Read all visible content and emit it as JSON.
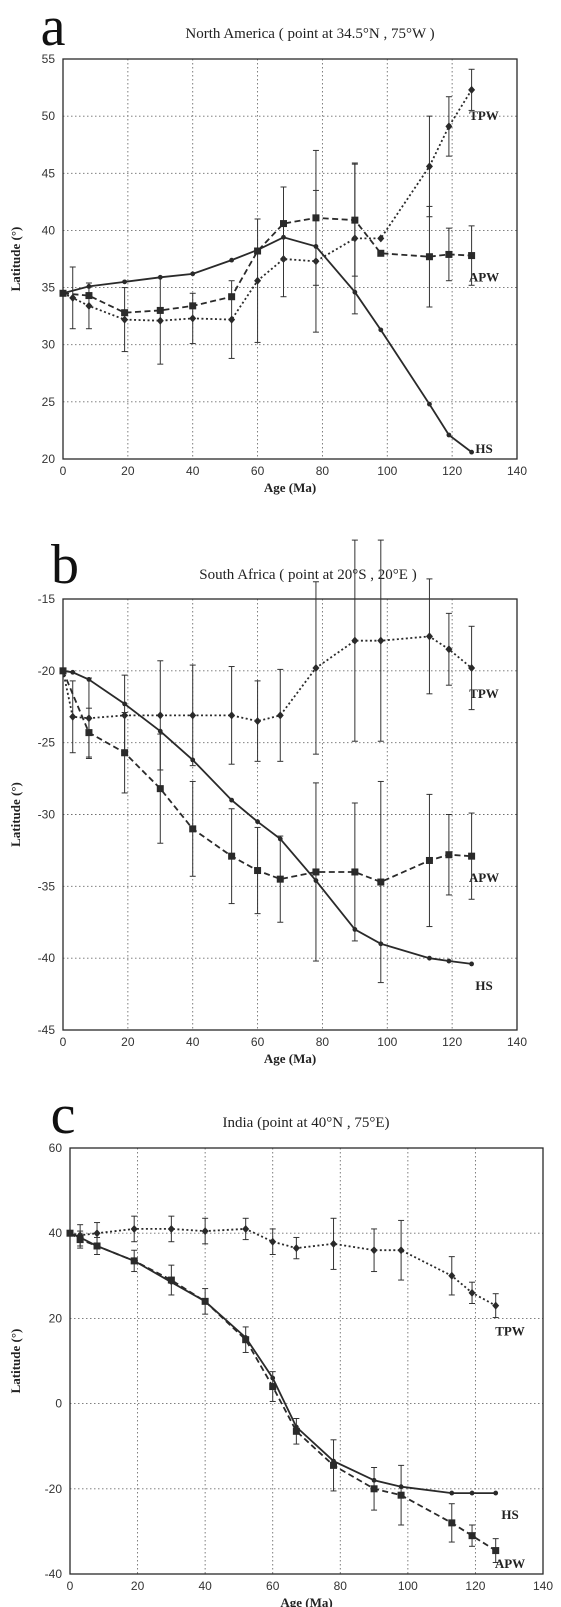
{
  "chart_data": [
    {
      "type": "line",
      "panel_letter": "a",
      "title": "North America ( point at 34.5°N , 75°W )",
      "xlabel": "Age (Ma)",
      "ylabel": "Latitude (°)",
      "xlim": [
        0,
        140
      ],
      "ylim": [
        20,
        55
      ],
      "xticks": [
        0,
        20,
        40,
        60,
        80,
        100,
        120,
        140
      ],
      "yticks": [
        20,
        25,
        30,
        35,
        40,
        45,
        50,
        55
      ],
      "grid": true,
      "series": [
        {
          "name": "TPW",
          "style": "dotted",
          "marker": "diamond",
          "x": [
            0,
            3,
            8,
            19,
            30,
            40,
            52,
            60,
            68,
            78,
            90,
            98,
            113,
            119,
            126
          ],
          "y": [
            34.5,
            34.1,
            33.4,
            32.2,
            32.1,
            32.3,
            32.2,
            35.6,
            37.5,
            37.3,
            39.3,
            39.3,
            45.6,
            49.1,
            52.3
          ],
          "err": [
            0,
            2.7,
            2.0,
            2.8,
            3.8,
            2.2,
            3.4,
            5.4,
            3.3,
            6.2,
            6.6,
            0,
            4.4,
            2.6,
            1.8
          ]
        },
        {
          "name": "APW",
          "style": "dashed",
          "marker": "square",
          "x": [
            0,
            8,
            19,
            30,
            40,
            52,
            60,
            68,
            78,
            90,
            98,
            113,
            119,
            126
          ],
          "y": [
            34.5,
            34.3,
            32.8,
            33.0,
            33.4,
            34.2,
            38.2,
            40.6,
            41.1,
            40.9,
            38.0,
            37.7,
            37.9,
            37.8
          ],
          "err": [
            0,
            0,
            0,
            0,
            0,
            0,
            0,
            3.2,
            5.9,
            4.9,
            0,
            4.4,
            2.3,
            2.6
          ]
        },
        {
          "name": "HS",
          "style": "solid",
          "marker": "dot",
          "x": [
            0,
            8,
            19,
            30,
            40,
            52,
            60,
            68,
            78,
            90,
            98,
            113,
            119,
            126
          ],
          "y": [
            34.5,
            35.1,
            35.5,
            35.9,
            36.2,
            37.4,
            38.3,
            39.4,
            38.6,
            34.6,
            31.3,
            24.8,
            22.1,
            20.6
          ],
          "err": [
            0,
            0,
            0,
            0,
            0,
            0,
            0,
            0,
            0,
            0,
            0,
            0,
            0,
            0
          ]
        }
      ]
    },
    {
      "type": "line",
      "panel_letter": "b",
      "title": "South Africa ( point at 20°S , 20°E )",
      "xlabel": "Age (Ma)",
      "ylabel": "Latitude (°)",
      "xlim": [
        0,
        140
      ],
      "ylim": [
        -45,
        -15
      ],
      "xticks": [
        0,
        20,
        40,
        60,
        80,
        100,
        120,
        140
      ],
      "yticks": [
        -45,
        -40,
        -35,
        -30,
        -25,
        -20,
        -15
      ],
      "grid": true,
      "series": [
        {
          "name": "TPW",
          "style": "dotted",
          "marker": "diamond",
          "x": [
            0,
            3,
            8,
            19,
            30,
            40,
            52,
            60,
            67,
            78,
            90,
            98,
            113,
            119,
            126
          ],
          "y": [
            -20.0,
            -23.2,
            -23.3,
            -23.1,
            -23.1,
            -23.1,
            -23.1,
            -23.5,
            -23.1,
            -19.8,
            -17.9,
            -17.9,
            -17.6,
            -18.5,
            -19.8
          ],
          "err": [
            0,
            2.5,
            2.8,
            2.8,
            3.8,
            3.5,
            3.4,
            2.8,
            3.2,
            6.0,
            7.0,
            7.0,
            4.0,
            2.5,
            2.9
          ]
        },
        {
          "name": "APW",
          "style": "dashed",
          "marker": "square",
          "x": [
            0,
            8,
            19,
            30,
            40,
            52,
            60,
            67,
            78,
            90,
            98,
            113,
            119,
            126
          ],
          "y": [
            -20.0,
            -24.3,
            -25.7,
            -28.2,
            -31.0,
            -32.9,
            -33.9,
            -34.5,
            -34.0,
            -34.0,
            -34.7,
            -33.2,
            -32.8,
            -32.9
          ],
          "err": [
            0,
            1.7,
            2.8,
            3.8,
            3.3,
            3.3,
            3.0,
            3.0,
            6.2,
            4.8,
            7.0,
            4.6,
            2.8,
            3.0
          ]
        },
        {
          "name": "HS",
          "style": "solid",
          "marker": "dot",
          "x": [
            0,
            3,
            8,
            19,
            30,
            40,
            52,
            60,
            67,
            78,
            90,
            98,
            113,
            119,
            126
          ],
          "y": [
            -20.0,
            -20.1,
            -20.6,
            -22.3,
            -24.2,
            -26.2,
            -29.0,
            -30.5,
            -31.7,
            -34.6,
            -38.0,
            -39.0,
            -40.0,
            -40.2,
            -40.4
          ],
          "err": [
            0,
            0,
            0,
            0,
            0,
            0,
            0,
            0,
            0,
            0,
            0,
            0,
            0,
            0,
            0
          ]
        }
      ]
    },
    {
      "type": "line",
      "panel_letter": "c",
      "title": "India (point at 40°N , 75°E)",
      "xlabel": "Age (Ma)",
      "ylabel": "Latitude (°)",
      "xlim": [
        0,
        140
      ],
      "ylim": [
        -40,
        60
      ],
      "xticks": [
        0,
        20,
        40,
        60,
        80,
        100,
        120,
        140
      ],
      "yticks": [
        -40,
        -20,
        0,
        20,
        40,
        60
      ],
      "grid": true,
      "series": [
        {
          "name": "TPW",
          "style": "dotted",
          "marker": "diamond",
          "x": [
            0,
            3,
            8,
            19,
            30,
            40,
            52,
            60,
            67,
            78,
            90,
            98,
            113,
            119,
            126
          ],
          "y": [
            40.0,
            39.5,
            40.0,
            41.0,
            41.0,
            40.5,
            41.0,
            38.0,
            36.5,
            37.5,
            36.0,
            36.0,
            30.0,
            26.0,
            23.0
          ],
          "err": [
            0,
            2.5,
            2.5,
            3.0,
            3.0,
            3.0,
            2.5,
            3.0,
            2.5,
            6.0,
            5.0,
            7.0,
            4.5,
            2.5,
            2.8
          ]
        },
        {
          "name": "APW",
          "style": "dashed",
          "marker": "square",
          "x": [
            0,
            3,
            8,
            19,
            30,
            40,
            52,
            60,
            67,
            78,
            90,
            98,
            113,
            119,
            126
          ],
          "y": [
            40.0,
            38.5,
            37.0,
            33.5,
            29.0,
            24.0,
            15.0,
            4.0,
            -6.5,
            -14.5,
            -20.0,
            -21.5,
            -28.0,
            -31.0,
            -34.5
          ],
          "err": [
            0,
            2.0,
            2.0,
            2.5,
            3.5,
            3.0,
            3.0,
            3.5,
            3.0,
            6.0,
            5.0,
            7.0,
            4.5,
            2.5,
            2.8
          ]
        },
        {
          "name": "HS",
          "style": "solid",
          "marker": "dot",
          "x": [
            0,
            3,
            8,
            19,
            30,
            40,
            52,
            60,
            67,
            78,
            90,
            98,
            113,
            119,
            126
          ],
          "y": [
            40.0,
            39.0,
            37.0,
            33.5,
            28.5,
            24.0,
            15.5,
            6.0,
            -5.5,
            -13.5,
            -18.0,
            -19.5,
            -21.0,
            -21.0,
            -21.0
          ],
          "err": [
            0,
            0,
            0,
            0,
            0,
            0,
            0,
            0,
            0,
            0,
            0,
            0,
            0,
            0,
            0
          ]
        }
      ]
    }
  ]
}
